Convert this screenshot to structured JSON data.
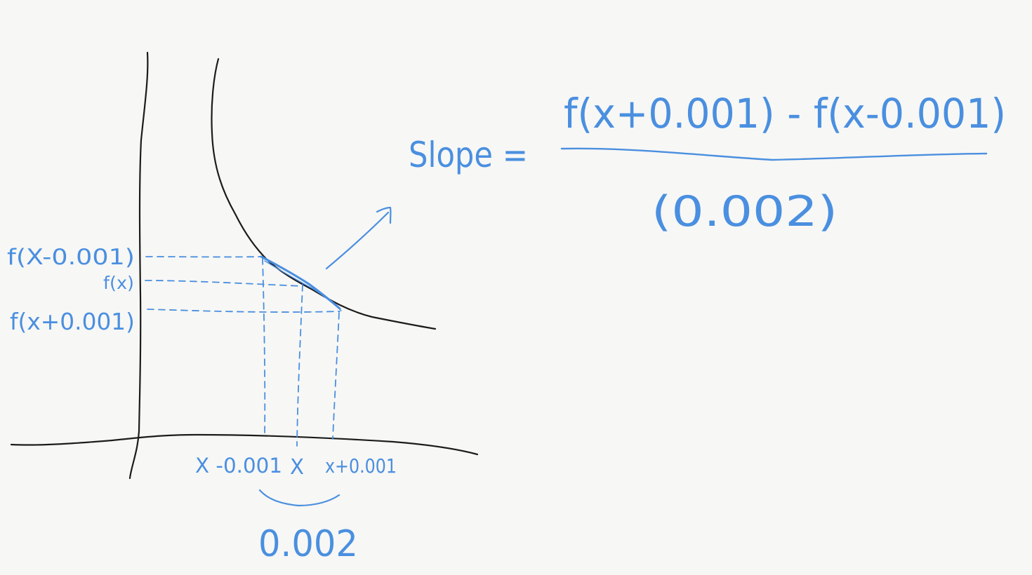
{
  "colors": {
    "paper": "#f7f7f5",
    "black_ink": "#1c1c1c",
    "blue_ink": "#4a8fe0"
  },
  "y_labels": {
    "f_minus": "f(X-0.001)",
    "f_x": "f(x)",
    "f_plus": "f(x+0.001)"
  },
  "x_labels": {
    "x_minus": "X -0.001",
    "x": "X",
    "x_plus": "x+0.001"
  },
  "interval": {
    "width_label": "0.002"
  },
  "formula": {
    "lhs": "Slope =",
    "numerator": "f(x+0.001) - f(x-0.001)",
    "denominator": "(0.002)"
  }
}
